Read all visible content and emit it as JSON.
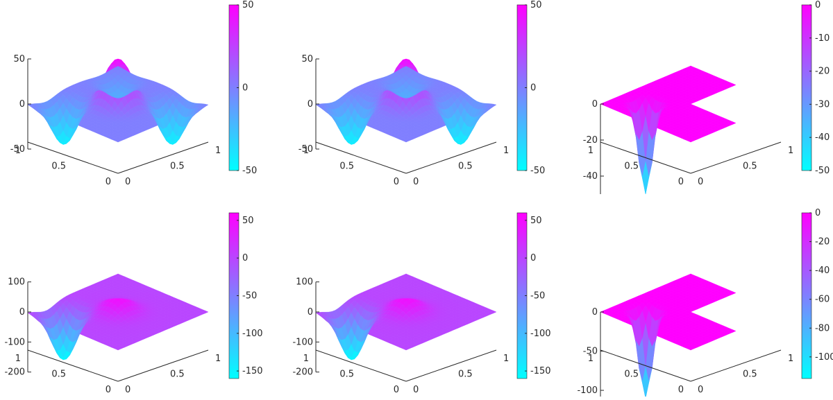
{
  "chart_data": [
    {
      "type": "surface3d",
      "z_ticks": [
        "50",
        "0",
        "-50"
      ],
      "x_ticks": [
        "1",
        "0.5",
        "0"
      ],
      "y_ticks": [
        "0",
        "0.5",
        "1"
      ],
      "zlim": [
        -50,
        50
      ],
      "colorbar": {
        "range": [
          -50,
          50
        ],
        "ticks": [
          "50",
          "0",
          "-50"
        ]
      },
      "surface": {
        "domain": "square",
        "peak_z": 50,
        "trough_z": -50,
        "vertical_walls": true,
        "jagged": true
      }
    },
    {
      "type": "surface3d",
      "z_ticks": [
        "50",
        "0",
        "-50"
      ],
      "x_ticks": [
        "1",
        "0.5",
        "0"
      ],
      "y_ticks": [
        "0",
        "0.5",
        "1"
      ],
      "zlim": [
        -50,
        50
      ],
      "colorbar": {
        "range": [
          -50,
          50
        ],
        "ticks": [
          "50",
          "0",
          "-50"
        ]
      },
      "surface": {
        "domain": "square",
        "peak_z": 50,
        "trough_z": -50,
        "vertical_walls": true,
        "jagged": false
      }
    },
    {
      "type": "surface3d",
      "z_ticks": [
        "0",
        "-20",
        "-40"
      ],
      "x_ticks": [
        "1",
        "0.5",
        "0"
      ],
      "y_ticks": [
        "0",
        "0.5",
        "1"
      ],
      "zlim": [
        -50,
        0
      ],
      "colorbar": {
        "range": [
          -50,
          0
        ],
        "ticks": [
          "0",
          "-10",
          "-20",
          "-30",
          "-40",
          "-50"
        ]
      },
      "surface": {
        "domain": "L-shape",
        "min_z": -50
      }
    },
    {
      "type": "surface3d",
      "z_ticks": [
        "100",
        "0",
        "-100",
        "-200"
      ],
      "x_ticks": [
        "1",
        "0.5",
        "0"
      ],
      "y_ticks": [
        "0",
        "0.5",
        "1"
      ],
      "zlim": [
        -200,
        100
      ],
      "colorbar": {
        "range": [
          -160,
          60
        ],
        "ticks": [
          "50",
          "0",
          "-50",
          "-100",
          "-150"
        ]
      },
      "surface": {
        "domain": "square",
        "peak_z": 50,
        "trough_z": -160
      }
    },
    {
      "type": "surface3d",
      "z_ticks": [
        "100",
        "0",
        "-100",
        "-200"
      ],
      "x_ticks": [
        "1",
        "0.5",
        "0"
      ],
      "y_ticks": [
        "0",
        "0.5",
        "1"
      ],
      "zlim": [
        -200,
        100
      ],
      "colorbar": {
        "range": [
          -160,
          60
        ],
        "ticks": [
          "50",
          "0",
          "-50",
          "-100",
          "-150"
        ]
      },
      "surface": {
        "domain": "square",
        "peak_z": 50,
        "trough_z": -160
      }
    },
    {
      "type": "surface3d",
      "z_ticks": [
        "0",
        "-50",
        "-100"
      ],
      "x_ticks": [
        "1",
        "0.5",
        "0"
      ],
      "y_ticks": [
        "0",
        "0.5",
        "1"
      ],
      "zlim": [
        -115,
        0
      ],
      "colorbar": {
        "range": [
          -115,
          0
        ],
        "ticks": [
          "0",
          "-20",
          "-40",
          "-60",
          "-80",
          "-100"
        ]
      },
      "surface": {
        "domain": "L-shape",
        "min_z": -110
      }
    }
  ],
  "colors": {
    "low": "#00ffff",
    "high": "#ff00ff",
    "axis": "#262626"
  }
}
